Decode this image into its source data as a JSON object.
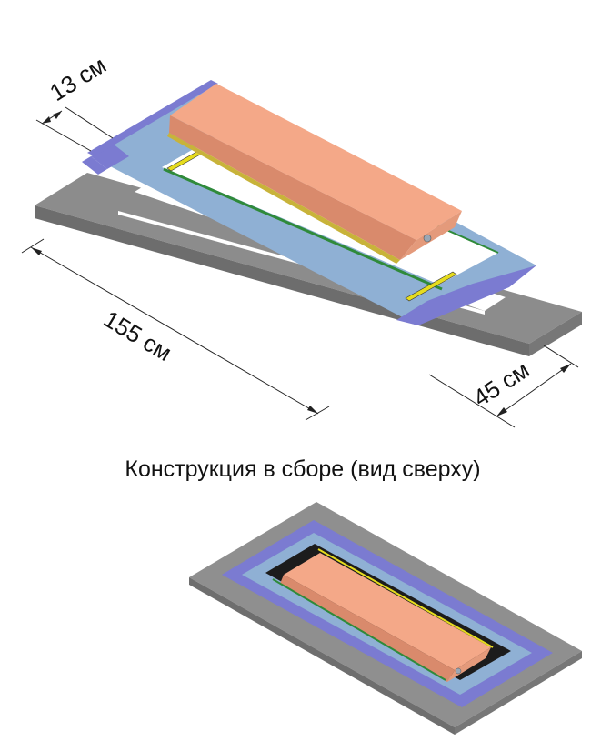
{
  "caption": "Конструкция в сборе (вид сверху)",
  "dimensions": {
    "width_13": "13 см",
    "length_155": "155 см",
    "width_45": "45 см"
  },
  "colors": {
    "frame_grey": "#8f8f8f",
    "frame_blue": "#7b7bd1",
    "rail_light_blue": "#8fb0d4",
    "mattress_salmon": "#f2a383",
    "strip_yellow": "#e6dc1e",
    "strip_green": "#2f8a3a"
  }
}
